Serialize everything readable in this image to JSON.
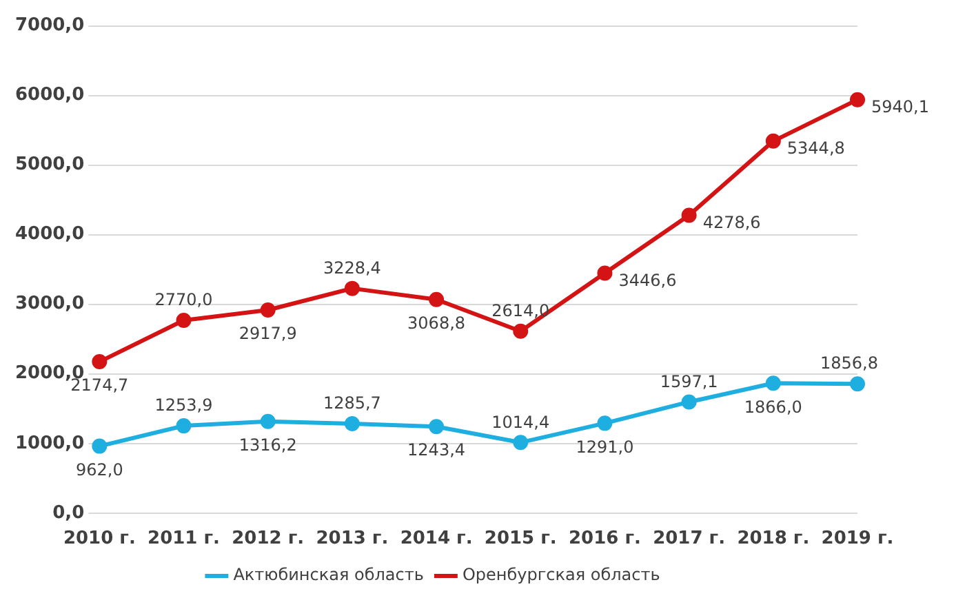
{
  "chart_data": {
    "type": "line",
    "categories": [
      "2010 г.",
      "2011 г.",
      "2012 г.",
      "2013 г.",
      "2014 г.",
      "2015 г.",
      "2016 г.",
      "2017 г.",
      "2018 г.",
      "2019 г."
    ],
    "series": [
      {
        "name": "Актюбинская область",
        "color": "#1eaee0",
        "values": [
          962.0,
          1253.9,
          1316.2,
          1285.7,
          1243.4,
          1014.4,
          1291.0,
          1597.1,
          1866.0,
          1856.8
        ],
        "value_labels": [
          "962,0",
          "1253,9",
          "1316,2",
          "1285,7",
          "1243,4",
          "1014,4",
          "1291,0",
          "1597,1",
          "1866,0",
          "1856,8"
        ]
      },
      {
        "name": "Оренбургская область",
        "color": "#d41414",
        "values": [
          2174.7,
          2770.0,
          2917.9,
          3228.4,
          3068.8,
          2614.0,
          3446.6,
          4278.6,
          5344.8,
          5940.1
        ],
        "value_labels": [
          "2174,7",
          "2770,0",
          "2917,9",
          "3228,4",
          "3068,8",
          "2614,0",
          "3446,6",
          "4278,6",
          "5344,8",
          "5940,1"
        ]
      }
    ],
    "ylim": [
      0,
      7000
    ],
    "yticks": [
      {
        "value": 0,
        "label": "0,0"
      },
      {
        "value": 1000,
        "label": "1000,0"
      },
      {
        "value": 2000,
        "label": "2000,0"
      },
      {
        "value": 3000,
        "label": "3000,0"
      },
      {
        "value": 4000,
        "label": "4000,0"
      },
      {
        "value": 5000,
        "label": "5000,0"
      },
      {
        "value": 6000,
        "label": "6000,0"
      },
      {
        "value": 7000,
        "label": "7000,0"
      }
    ],
    "grid": "y",
    "legend": "bottom",
    "marker": "circle",
    "line_style": "solid"
  }
}
